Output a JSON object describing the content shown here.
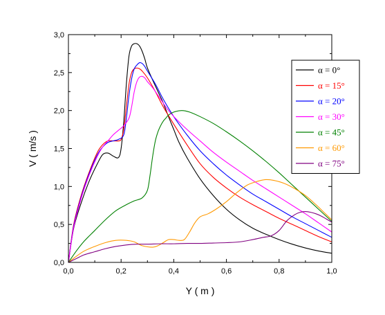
{
  "chart_data": {
    "type": "line",
    "xlabel": "Y ( m )",
    "ylabel": "V ( m/s )",
    "xlim": [
      0,
      1.0
    ],
    "ylim": [
      0,
      3.0
    ],
    "xticks": [
      "0,0",
      "0,2",
      "0,4",
      "0,6",
      "0,8",
      "1,0"
    ],
    "yticks": [
      "0,0",
      "0,5",
      "1,0",
      "1,5",
      "2,0",
      "2,5",
      "3,0"
    ],
    "grid": false,
    "legend_position": "top-right",
    "series": [
      {
        "name": "α = 0°",
        "color": "#000000",
        "x": [
          0,
          0.02,
          0.05,
          0.08,
          0.11,
          0.13,
          0.15,
          0.17,
          0.19,
          0.2,
          0.21,
          0.22,
          0.23,
          0.24,
          0.25,
          0.26,
          0.27,
          0.28,
          0.29,
          0.3,
          0.32,
          0.34,
          0.36,
          0.38,
          0.4,
          0.42,
          0.45,
          0.5,
          0.55,
          0.6,
          0.65,
          0.7,
          0.75,
          0.8,
          0.85,
          0.9,
          0.95,
          1.0
        ],
        "values": [
          0,
          0.45,
          0.8,
          1.08,
          1.3,
          1.42,
          1.44,
          1.4,
          1.38,
          1.5,
          1.85,
          2.35,
          2.72,
          2.85,
          2.88,
          2.88,
          2.85,
          2.78,
          2.68,
          2.56,
          2.4,
          2.25,
          2.1,
          1.92,
          1.75,
          1.58,
          1.38,
          1.1,
          0.88,
          0.7,
          0.56,
          0.45,
          0.37,
          0.3,
          0.24,
          0.19,
          0.15,
          0.12
        ]
      },
      {
        "name": "α = 15°",
        "color": "#ff0000",
        "x": [
          0,
          0.02,
          0.05,
          0.08,
          0.11,
          0.13,
          0.15,
          0.17,
          0.19,
          0.2,
          0.21,
          0.22,
          0.23,
          0.24,
          0.25,
          0.26,
          0.27,
          0.28,
          0.3,
          0.33,
          0.36,
          0.4,
          0.45,
          0.5,
          0.55,
          0.6,
          0.65,
          0.7,
          0.75,
          0.8,
          0.85,
          0.9,
          0.95,
          1.0
        ],
        "values": [
          0,
          0.5,
          0.9,
          1.2,
          1.45,
          1.55,
          1.6,
          1.6,
          1.6,
          1.62,
          1.75,
          2.05,
          2.35,
          2.5,
          2.55,
          2.56,
          2.55,
          2.52,
          2.43,
          2.25,
          2.05,
          1.82,
          1.55,
          1.3,
          1.12,
          0.98,
          0.86,
          0.76,
          0.67,
          0.58,
          0.5,
          0.42,
          0.34,
          0.27
        ]
      },
      {
        "name": "α = 20°",
        "color": "#0000ff",
        "x": [
          0,
          0.02,
          0.05,
          0.08,
          0.11,
          0.13,
          0.15,
          0.17,
          0.19,
          0.21,
          0.22,
          0.23,
          0.24,
          0.25,
          0.26,
          0.27,
          0.28,
          0.29,
          0.3,
          0.33,
          0.36,
          0.4,
          0.45,
          0.5,
          0.55,
          0.6,
          0.65,
          0.7,
          0.75,
          0.8,
          0.85,
          0.9,
          0.95,
          1.0
        ],
        "values": [
          0,
          0.48,
          0.88,
          1.18,
          1.42,
          1.52,
          1.58,
          1.6,
          1.62,
          1.68,
          1.9,
          2.2,
          2.42,
          2.55,
          2.6,
          2.63,
          2.62,
          2.58,
          2.52,
          2.35,
          2.15,
          1.92,
          1.68,
          1.47,
          1.3,
          1.15,
          1.02,
          0.9,
          0.8,
          0.7,
          0.6,
          0.51,
          0.42,
          0.33
        ]
      },
      {
        "name": "α = 30°",
        "color": "#ff00ff",
        "x": [
          0,
          0.02,
          0.05,
          0.08,
          0.11,
          0.13,
          0.15,
          0.17,
          0.19,
          0.21,
          0.23,
          0.24,
          0.25,
          0.26,
          0.27,
          0.28,
          0.29,
          0.3,
          0.32,
          0.35,
          0.38,
          0.42,
          0.46,
          0.5,
          0.55,
          0.6,
          0.65,
          0.7,
          0.75,
          0.8,
          0.85,
          0.9,
          0.95,
          1.0
        ],
        "values": [
          0,
          0.46,
          0.86,
          1.16,
          1.4,
          1.52,
          1.6,
          1.68,
          1.74,
          1.8,
          1.9,
          2.05,
          2.25,
          2.38,
          2.44,
          2.45,
          2.43,
          2.38,
          2.3,
          2.15,
          2.0,
          1.85,
          1.72,
          1.6,
          1.45,
          1.32,
          1.2,
          1.08,
          0.97,
          0.86,
          0.75,
          0.64,
          0.52,
          0.4
        ]
      },
      {
        "name": "α = 45°",
        "color": "#008000",
        "x": [
          0,
          0.03,
          0.06,
          0.1,
          0.14,
          0.18,
          0.22,
          0.25,
          0.28,
          0.3,
          0.31,
          0.32,
          0.33,
          0.34,
          0.35,
          0.36,
          0.37,
          0.38,
          0.4,
          0.43,
          0.46,
          0.5,
          0.55,
          0.6,
          0.65,
          0.7,
          0.75,
          0.8,
          0.85,
          0.9,
          0.95,
          1.0
        ],
        "values": [
          0,
          0.15,
          0.28,
          0.42,
          0.56,
          0.68,
          0.76,
          0.81,
          0.85,
          0.95,
          1.15,
          1.4,
          1.6,
          1.72,
          1.8,
          1.86,
          1.9,
          1.94,
          1.98,
          2.0,
          1.98,
          1.92,
          1.83,
          1.72,
          1.6,
          1.47,
          1.33,
          1.18,
          1.02,
          0.86,
          0.7,
          0.54
        ]
      },
      {
        "name": "α = 60°",
        "color": "#ff9900",
        "x": [
          0,
          0.03,
          0.06,
          0.1,
          0.14,
          0.18,
          0.22,
          0.25,
          0.28,
          0.32,
          0.34,
          0.36,
          0.38,
          0.4,
          0.42,
          0.44,
          0.46,
          0.48,
          0.5,
          0.53,
          0.56,
          0.6,
          0.64,
          0.68,
          0.72,
          0.75,
          0.78,
          0.82,
          0.86,
          0.9,
          0.94,
          0.97,
          1.0
        ],
        "values": [
          0,
          0.08,
          0.15,
          0.21,
          0.26,
          0.29,
          0.29,
          0.27,
          0.22,
          0.2,
          0.22,
          0.26,
          0.3,
          0.3,
          0.29,
          0.3,
          0.4,
          0.52,
          0.6,
          0.64,
          0.7,
          0.8,
          0.92,
          1.02,
          1.07,
          1.09,
          1.08,
          1.04,
          0.97,
          0.88,
          0.76,
          0.66,
          0.56
        ]
      },
      {
        "name": "α = 75°",
        "color": "#800080",
        "x": [
          0,
          0.03,
          0.06,
          0.1,
          0.14,
          0.18,
          0.22,
          0.26,
          0.3,
          0.35,
          0.4,
          0.45,
          0.5,
          0.55,
          0.6,
          0.65,
          0.7,
          0.74,
          0.77,
          0.8,
          0.83,
          0.86,
          0.88,
          0.9,
          0.92,
          0.94,
          0.96,
          0.98,
          1.0
        ],
        "values": [
          0,
          0.05,
          0.1,
          0.14,
          0.18,
          0.21,
          0.23,
          0.24,
          0.24,
          0.245,
          0.245,
          0.25,
          0.25,
          0.255,
          0.26,
          0.27,
          0.3,
          0.33,
          0.35,
          0.42,
          0.55,
          0.63,
          0.66,
          0.67,
          0.66,
          0.64,
          0.61,
          0.57,
          0.53
        ]
      }
    ]
  }
}
